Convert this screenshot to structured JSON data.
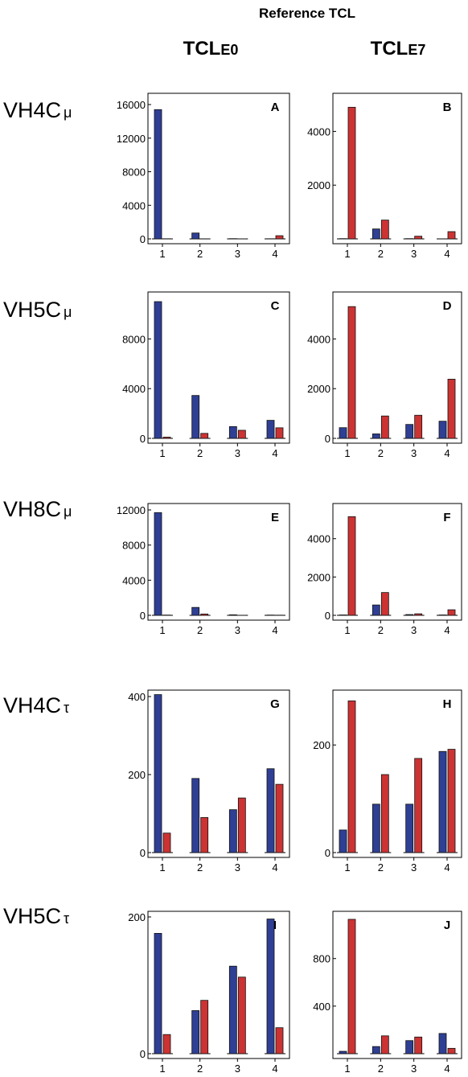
{
  "header": {
    "title": "Reference TCL",
    "columns": [
      {
        "main": "TCL",
        "sub": "E0"
      },
      {
        "main": "TCL",
        "sub": "E7"
      }
    ]
  },
  "rows": [
    {
      "main": "VH4C",
      "sub": "μ"
    },
    {
      "main": "VH5C",
      "sub": "μ"
    },
    {
      "main": "VH8C",
      "sub": "μ"
    },
    {
      "main": "VH4C",
      "sub": "τ"
    },
    {
      "main": "VH5C",
      "sub": "τ"
    }
  ],
  "colors": {
    "series_a": "#2f3f94",
    "series_b": "#cc3333"
  },
  "chart_data": [
    {
      "panel": "A",
      "type": "bar",
      "categories": [
        "1",
        "2",
        "3",
        "4"
      ],
      "ylim": [
        0,
        16000
      ],
      "yticks": [
        "0",
        "4000",
        "8000",
        "12000",
        "16000"
      ],
      "series": [
        {
          "values": [
            15400,
            700,
            30,
            20
          ]
        },
        {
          "values": [
            20,
            0,
            10,
            380
          ]
        }
      ]
    },
    {
      "panel": "B",
      "type": "bar",
      "categories": [
        "1",
        "2",
        "3",
        "4"
      ],
      "ylim": [
        0,
        5000
      ],
      "yticks": [
        "2000",
        "4000"
      ],
      "series": [
        {
          "values": [
            10,
            370,
            10,
            0
          ]
        },
        {
          "values": [
            4900,
            700,
            100,
            270
          ]
        }
      ]
    },
    {
      "panel": "C",
      "type": "bar",
      "categories": [
        "1",
        "2",
        "3",
        "4"
      ],
      "ylim": [
        0,
        11000
      ],
      "yticks": [
        "0",
        "4000",
        "8000"
      ],
      "series": [
        {
          "values": [
            11000,
            3450,
            950,
            1450
          ]
        },
        {
          "values": [
            100,
            400,
            650,
            850
          ]
        }
      ]
    },
    {
      "panel": "D",
      "type": "bar",
      "categories": [
        "1",
        "2",
        "3",
        "4"
      ],
      "ylim": [
        0,
        5500
      ],
      "yticks": [
        "0",
        "2000",
        "4000"
      ],
      "series": [
        {
          "values": [
            430,
            180,
            560,
            690
          ]
        },
        {
          "values": [
            5300,
            900,
            930,
            2380
          ]
        }
      ]
    },
    {
      "panel": "E",
      "type": "bar",
      "categories": [
        "1",
        "2",
        "3",
        "4"
      ],
      "ylim": [
        0,
        12000
      ],
      "yticks": [
        "0",
        "4000",
        "8000",
        "12000"
      ],
      "series": [
        {
          "values": [
            11700,
            900,
            60,
            30
          ]
        },
        {
          "values": [
            30,
            150,
            10,
            20
          ]
        }
      ]
    },
    {
      "panel": "F",
      "type": "bar",
      "categories": [
        "1",
        "2",
        "3",
        "4"
      ],
      "ylim": [
        0,
        5500
      ],
      "yticks": [
        "0",
        "2000",
        "4000"
      ],
      "series": [
        {
          "values": [
            20,
            540,
            40,
            20
          ]
        },
        {
          "values": [
            5150,
            1190,
            80,
            290
          ]
        }
      ]
    },
    {
      "panel": "G",
      "type": "bar",
      "categories": [
        "1",
        "2",
        "3",
        "4"
      ],
      "ylim": [
        0,
        400
      ],
      "yticks": [
        "0",
        "200",
        "400"
      ],
      "series": [
        {
          "values": [
            405,
            190,
            110,
            215
          ]
        },
        {
          "values": [
            50,
            90,
            140,
            175
          ]
        }
      ]
    },
    {
      "panel": "H",
      "type": "bar",
      "categories": [
        "1",
        "2",
        "3",
        "4"
      ],
      "ylim": [
        0,
        290
      ],
      "yticks": [
        "0",
        "200"
      ],
      "series": [
        {
          "values": [
            42,
            90,
            90,
            188
          ]
        },
        {
          "values": [
            282,
            145,
            175,
            192
          ]
        }
      ]
    },
    {
      "panel": "I",
      "type": "bar",
      "categories": [
        "1",
        "2",
        "3",
        "4"
      ],
      "ylim": [
        0,
        200
      ],
      "yticks": [
        "0",
        "200"
      ],
      "series": [
        {
          "values": [
            176,
            63,
            128,
            197
          ]
        },
        {
          "values": [
            28,
            78,
            112,
            38
          ]
        }
      ]
    },
    {
      "panel": "J",
      "type": "bar",
      "categories": [
        "1",
        "2",
        "3",
        "4"
      ],
      "ylim": [
        0,
        1150
      ],
      "yticks": [
        "400",
        "800"
      ],
      "series": [
        {
          "values": [
            20,
            60,
            110,
            170
          ]
        },
        {
          "values": [
            1130,
            150,
            140,
            45
          ]
        }
      ]
    }
  ]
}
